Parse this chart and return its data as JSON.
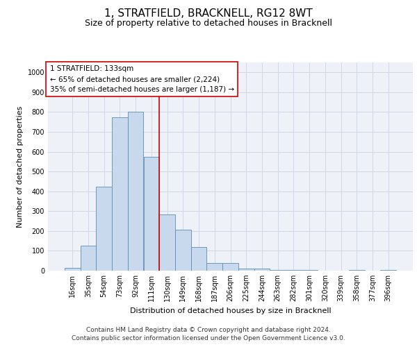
{
  "title": "1, STRATFIELD, BRACKNELL, RG12 8WT",
  "subtitle": "Size of property relative to detached houses in Bracknell",
  "xlabel": "Distribution of detached houses by size in Bracknell",
  "ylabel": "Number of detached properties",
  "categories": [
    "16sqm",
    "35sqm",
    "54sqm",
    "73sqm",
    "92sqm",
    "111sqm",
    "130sqm",
    "149sqm",
    "168sqm",
    "187sqm",
    "206sqm",
    "225sqm",
    "244sqm",
    "263sqm",
    "282sqm",
    "301sqm",
    "320sqm",
    "339sqm",
    "358sqm",
    "377sqm",
    "396sqm"
  ],
  "values": [
    15,
    125,
    425,
    775,
    800,
    575,
    285,
    205,
    120,
    40,
    40,
    10,
    10,
    5,
    5,
    5,
    0,
    0,
    5,
    0,
    5
  ],
  "bar_color": "#c9d9ed",
  "bar_edge_color": "#5b8db8",
  "grid_color": "#d0d8e8",
  "background_color": "#eef2f8",
  "vline_color": "#cc0000",
  "annotation_text": "1 STRATFIELD: 133sqm\n← 65% of detached houses are smaller (2,224)\n35% of semi-detached houses are larger (1,187) →",
  "annotation_box_color": "#ffffff",
  "annotation_box_edge_color": "#cc0000",
  "ylim": [
    0,
    1050
  ],
  "yticks": [
    0,
    100,
    200,
    300,
    400,
    500,
    600,
    700,
    800,
    900,
    1000
  ],
  "footer_line1": "Contains HM Land Registry data © Crown copyright and database right 2024.",
  "footer_line2": "Contains public sector information licensed under the Open Government Licence v3.0.",
  "title_fontsize": 11,
  "subtitle_fontsize": 9,
  "ylabel_fontsize": 8,
  "xlabel_fontsize": 8,
  "tick_fontsize": 7,
  "annotation_fontsize": 7.5,
  "footer_fontsize": 6.5
}
